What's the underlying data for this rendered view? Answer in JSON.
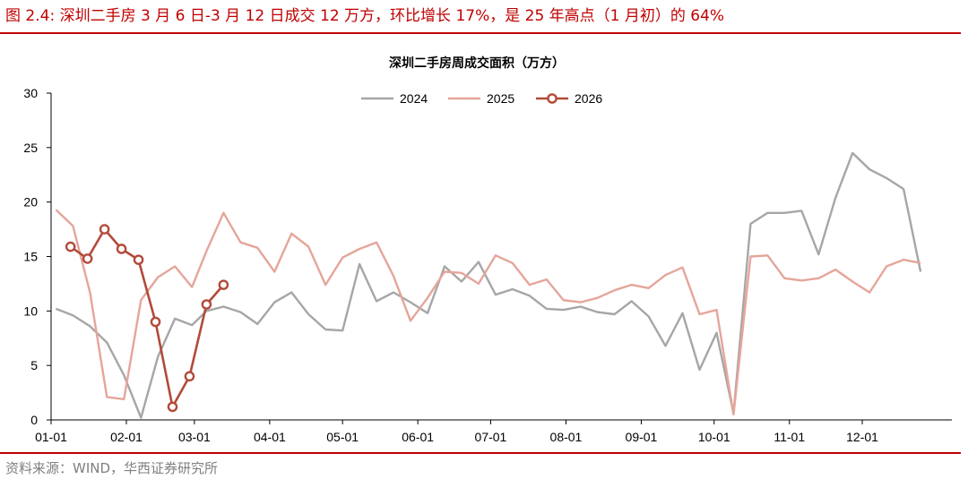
{
  "caption": "图 2.4:  深圳二手房 3 月 6 日-3 月 12 日成交 12 万方，环比增长 17%，是 25 年高点（1 月初）的 64%",
  "source": "资料来源：WIND，华西证券研究所",
  "colors": {
    "accent": "#c00000",
    "s2024": "#a6a6a6",
    "s2025": "#e5a59a",
    "s2026": "#b24a3a"
  },
  "chart_data": {
    "type": "line",
    "title": "深圳二手房周成交面积（万方）",
    "xlabel": "",
    "ylabel": "",
    "ylim": [
      0,
      30
    ],
    "yticks": [
      "0",
      "5",
      "10",
      "15",
      "20",
      "25",
      "30"
    ],
    "xticks": [
      "01-01",
      "02-01",
      "03-01",
      "04-01",
      "05-01",
      "06-01",
      "07-01",
      "08-01",
      "09-01",
      "10-01",
      "11-01",
      "12-01"
    ],
    "grid": false,
    "legend": "top-center",
    "series": [
      {
        "name": "2024",
        "color": "#a6a6a6",
        "markers": false,
        "x": [
          "01-03",
          "01-10",
          "01-17",
          "01-24",
          "01-31",
          "02-07",
          "02-14",
          "02-21",
          "02-28",
          "03-06",
          "03-13",
          "03-20",
          "03-27",
          "04-03",
          "04-10",
          "04-17",
          "04-24",
          "05-01",
          "05-08",
          "05-15",
          "05-22",
          "05-29",
          "06-05",
          "06-12",
          "06-19",
          "06-26",
          "07-03",
          "07-10",
          "07-17",
          "07-24",
          "07-31",
          "08-07",
          "08-14",
          "08-21",
          "08-28",
          "09-04",
          "09-11",
          "09-18",
          "09-25",
          "10-02",
          "10-09",
          "10-16",
          "10-23",
          "10-30",
          "11-06",
          "11-13",
          "11-20",
          "11-27",
          "12-04",
          "12-11",
          "12-18",
          "12-25"
        ],
        "values": [
          10.2,
          9.6,
          8.6,
          7.1,
          4.1,
          0.2,
          5.8,
          9.3,
          8.7,
          10.0,
          10.4,
          9.9,
          8.8,
          10.8,
          11.7,
          9.7,
          8.3,
          8.2,
          14.3,
          10.9,
          11.7,
          10.8,
          9.8,
          14.1,
          12.7,
          14.5,
          11.5,
          12.0,
          11.4,
          10.2,
          10.1,
          10.4,
          9.9,
          9.7,
          10.9,
          9.5,
          6.8,
          9.8,
          4.6,
          8.0,
          0.6,
          18.0,
          19.0,
          19.0,
          19.2,
          15.2,
          20.4,
          24.5,
          23.0,
          22.2,
          21.2,
          13.6
        ]
      },
      {
        "name": "2025",
        "color": "#e5a59a",
        "markers": false,
        "x": [
          "01-03",
          "01-10",
          "01-17",
          "01-24",
          "01-31",
          "02-07",
          "02-14",
          "02-21",
          "02-28",
          "03-06",
          "03-13",
          "03-20",
          "03-27",
          "04-03",
          "04-10",
          "04-17",
          "04-24",
          "05-01",
          "05-08",
          "05-15",
          "05-22",
          "05-29",
          "06-05",
          "06-12",
          "06-19",
          "06-26",
          "07-03",
          "07-10",
          "07-17",
          "07-24",
          "07-31",
          "08-07",
          "08-14",
          "08-21",
          "08-28",
          "09-04",
          "09-11",
          "09-18",
          "09-25",
          "10-02",
          "10-09",
          "10-16",
          "10-23",
          "10-30",
          "11-06",
          "11-13",
          "11-20",
          "11-27",
          "12-04",
          "12-11",
          "12-18",
          "12-25"
        ],
        "values": [
          19.3,
          17.8,
          11.7,
          2.1,
          1.9,
          11.0,
          13.1,
          14.1,
          12.2,
          15.5,
          19.0,
          16.3,
          15.8,
          13.6,
          17.1,
          15.9,
          12.4,
          14.9,
          15.7,
          16.3,
          13.2,
          9.1,
          11.2,
          13.6,
          13.5,
          12.5,
          15.1,
          14.4,
          12.4,
          12.9,
          11.0,
          10.8,
          11.2,
          11.9,
          12.4,
          12.1,
          13.3,
          14.0,
          9.7,
          10.1,
          0.5,
          15.0,
          15.1,
          13.0,
          12.8,
          13.0,
          13.8,
          12.7,
          11.7,
          14.1,
          14.7,
          14.4
        ]
      },
      {
        "name": "2026",
        "color": "#b24a3a",
        "markers": true,
        "x": [
          "01-09",
          "01-16",
          "01-23",
          "01-30",
          "02-06",
          "02-13",
          "02-20",
          "02-27",
          "03-06",
          "03-13"
        ],
        "values": [
          15.9,
          14.8,
          17.5,
          15.7,
          14.7,
          9.0,
          1.2,
          4.0,
          10.6,
          12.4
        ]
      }
    ]
  }
}
